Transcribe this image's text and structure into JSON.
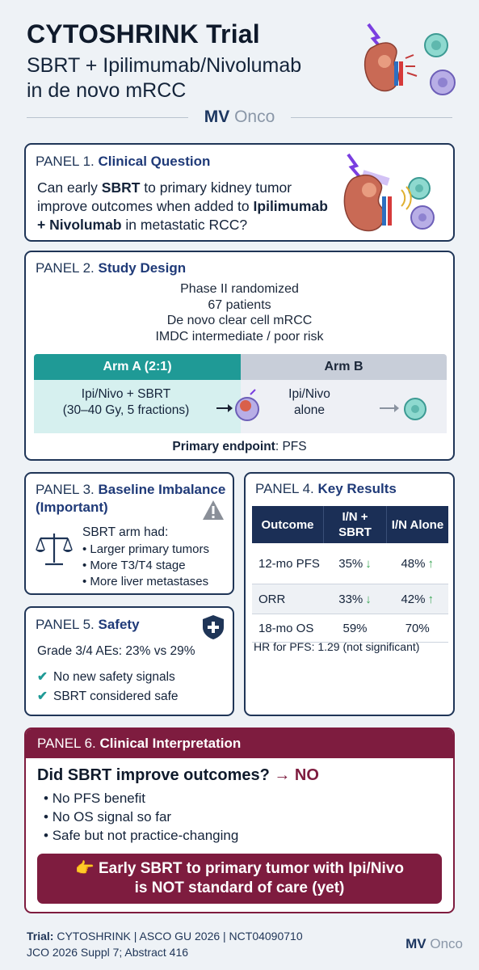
{
  "header": {
    "title": "CYTOSHRINK Trial",
    "subtitle_line1": "SBRT + Ipilimumab/Nivolumab",
    "subtitle_line2": "in de novo mRCC",
    "brand_mv": "MV",
    "brand_onco": "Onco"
  },
  "panel1": {
    "num": "PANEL 1.",
    "name": "Clinical Question",
    "q_part1": "Can early ",
    "q_bold1": "SBRT",
    "q_part2": " to primary kidney tumor improve outcomes when added to ",
    "q_bold2": "Ipilimumab + Nivolumab",
    "q_part3": " in metastatic RCC?",
    "art_icon": "kidney-radiation-tcell-icon"
  },
  "panel2": {
    "num": "PANEL 2.",
    "name": "Study Design",
    "lines": [
      "Phase II randomized",
      "67 patients",
      "De novo clear cell mRCC",
      "IMDC intermediate / poor risk"
    ],
    "arm_a": {
      "header": "Arm A (2:1)",
      "line1": "Ipi/Nivo + SBRT",
      "line2": "(30–40 Gy, 5 fractions)"
    },
    "arm_b": {
      "header": "Arm B",
      "line1": "Ipi/Nivo",
      "line2": "alone"
    },
    "endpoint_label": "Primary endpoint",
    "endpoint_value": ": PFS"
  },
  "panel3": {
    "num": "PANEL 3.",
    "name": "Baseline Imbalance (Important)",
    "intro": "SBRT arm had:",
    "items": [
      "Larger primary tumors",
      "More T3/T4 stage",
      "More liver metastases"
    ]
  },
  "panel4": {
    "num": "PANEL 4.",
    "name": "Key Results",
    "columns": [
      "Outcome",
      "I/N + SBRT",
      "I/N Alone"
    ],
    "rows": [
      {
        "outcome": "12-mo PFS",
        "sbrt": "35%",
        "alone": "48%",
        "sbrt_arrow": "down",
        "alone_arrow": "up"
      },
      {
        "outcome": "ORR",
        "sbrt": "33%",
        "alone": "42%",
        "sbrt_arrow": "down",
        "alone_arrow": "up"
      },
      {
        "outcome": "18-mo OS",
        "sbrt": "59%",
        "alone": "70%"
      }
    ],
    "hr_note": "HR for PFS: 1.29 (not significant)"
  },
  "panel5": {
    "num": "PANEL 5.",
    "name": "Safety",
    "ae": "Grade 3/4 AEs: 23% vs 29%",
    "checks": [
      "No new safety signals",
      "SBRT considered safe"
    ]
  },
  "panel6": {
    "num": "PANEL 6.",
    "name": "Clinical Interpretation",
    "question": "Did SBRT improve outcomes?",
    "answer": "→ NO",
    "items": [
      "No PFS benefit",
      "No OS signal so far",
      "Safe but not practice-changing"
    ],
    "verdict_line1": "👉 Early SBRT to primary tumor with Ipi/Nivo",
    "verdict_line2": "is NOT standard of care (yet)"
  },
  "footer": {
    "trial_label": "Trial:",
    "trial_text": " CYTOSHRINK | ASCO GU 2026 | NCT04090710",
    "citation": "JCO 2026 Suppl 7; Abstract 416",
    "brand_mv": "MV",
    "brand_onco": "Onco"
  },
  "colors": {
    "navy": "#1f3557",
    "teal": "#1f9a96",
    "maroon": "#7e1c3f",
    "green_arrow": "#3aa655"
  }
}
